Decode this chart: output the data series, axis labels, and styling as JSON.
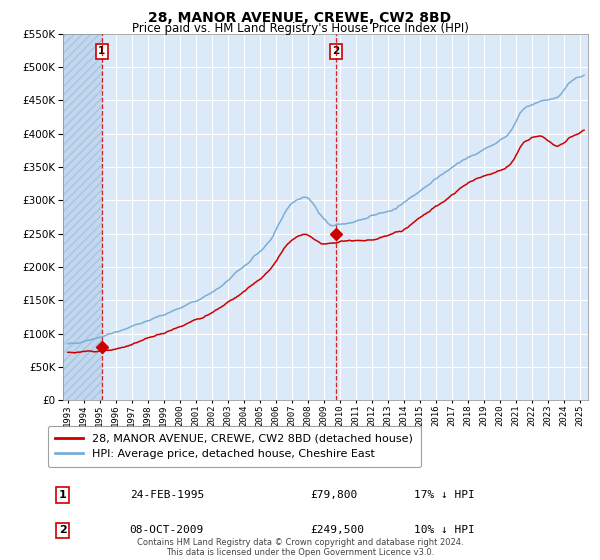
{
  "title": "28, MANOR AVENUE, CREWE, CW2 8BD",
  "subtitle": "Price paid vs. HM Land Registry's House Price Index (HPI)",
  "red_label": "28, MANOR AVENUE, CREWE, CW2 8BD (detached house)",
  "blue_label": "HPI: Average price, detached house, Cheshire East",
  "transaction1_date": "24-FEB-1995",
  "transaction1_price": 79800,
  "transaction1_hpi": "17% ↓ HPI",
  "transaction1_year": 1995.12,
  "transaction2_date": "08-OCT-2009",
  "transaction2_price": 249500,
  "transaction2_hpi": "10% ↓ HPI",
  "transaction2_year": 2009.77,
  "ylim": [
    0,
    550000
  ],
  "xlim_start": 1992.7,
  "xlim_end": 2025.5,
  "background_color": "#dce9f8",
  "hatch_color": "#c2d8ee",
  "grid_color": "#ffffff",
  "red_color": "#cc0000",
  "blue_color": "#7aaed6",
  "footnote": "Contains HM Land Registry data © Crown copyright and database right 2024.\nThis data is licensed under the Open Government Licence v3.0."
}
